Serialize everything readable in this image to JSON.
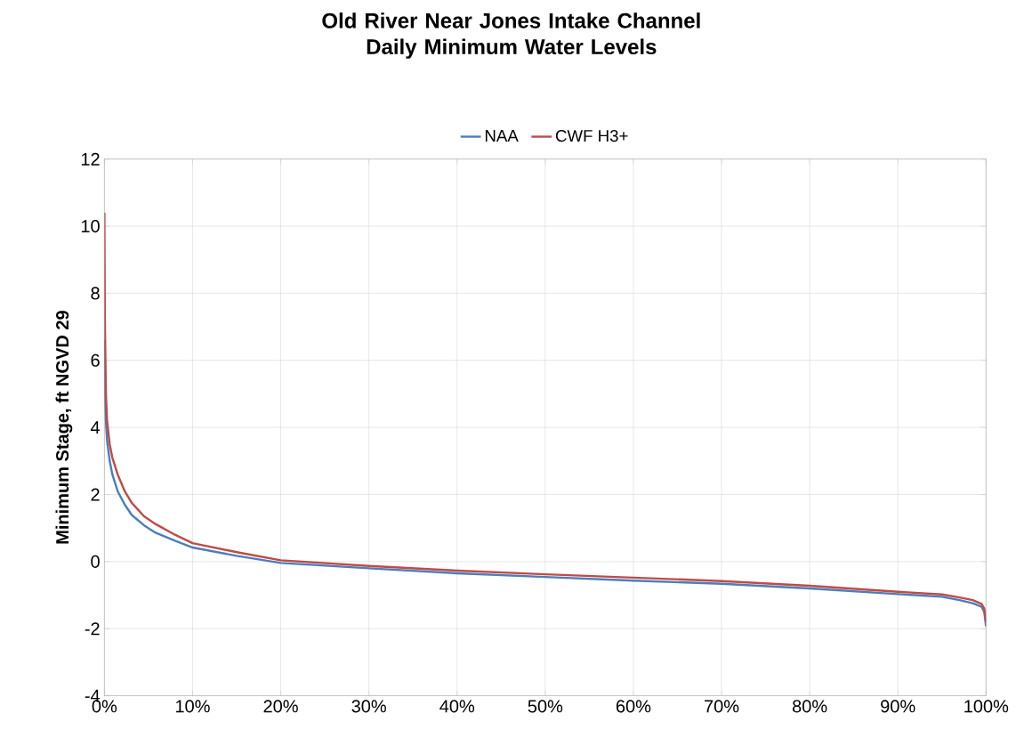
{
  "chart_data": {
    "type": "line",
    "title": "Old River Near Jones Intake Channel\nDaily Minimum Water Levels",
    "ylabel": "Minimum Stage, ft NGVD 29",
    "x": [
      0,
      0.05,
      0.17,
      0.3,
      0.6,
      0.9,
      1.5,
      2.3,
      3.1,
      4.5,
      5.8,
      8,
      10,
      15,
      20,
      30,
      40,
      50,
      60,
      70,
      80,
      90,
      95,
      97,
      98.5,
      99.5,
      99.8,
      100
    ],
    "series": [
      {
        "name": "NAA",
        "color": "#4a7ebb",
        "values": [
          6.6,
          5.0,
          4.2,
          3.6,
          3.0,
          2.6,
          2.1,
          1.7,
          1.39,
          1.08,
          0.86,
          0.62,
          0.42,
          0.17,
          -0.04,
          -0.2,
          -0.35,
          -0.46,
          -0.57,
          -0.66,
          -0.8,
          -0.97,
          -1.05,
          -1.15,
          -1.24,
          -1.35,
          -1.5,
          -1.93
        ]
      },
      {
        "name": "CWF H3+",
        "color": "#be4b48",
        "values": [
          10.4,
          7.2,
          5.0,
          4.2,
          3.5,
          3.1,
          2.6,
          2.1,
          1.75,
          1.35,
          1.12,
          0.8,
          0.55,
          0.28,
          0.04,
          -0.13,
          -0.27,
          -0.38,
          -0.48,
          -0.58,
          -0.72,
          -0.9,
          -0.98,
          -1.07,
          -1.15,
          -1.26,
          -1.4,
          -1.8
        ]
      }
    ],
    "xlim": [
      0,
      100
    ],
    "ylim": [
      -4,
      12
    ],
    "xticks": [
      {
        "value": 0,
        "label": "0%"
      },
      {
        "value": 10,
        "label": "10%"
      },
      {
        "value": 20,
        "label": "20%"
      },
      {
        "value": 30,
        "label": "30%"
      },
      {
        "value": 40,
        "label": "40%"
      },
      {
        "value": 50,
        "label": "50%"
      },
      {
        "value": 60,
        "label": "60%"
      },
      {
        "value": 70,
        "label": "70%"
      },
      {
        "value": 80,
        "label": "80%"
      },
      {
        "value": 90,
        "label": "90%"
      },
      {
        "value": 100,
        "label": "100%"
      }
    ],
    "yticks": [
      -4,
      -2,
      0,
      2,
      4,
      6,
      8,
      10,
      12
    ],
    "grid": true,
    "legend": "top",
    "marker": "none",
    "line_style": "solid"
  }
}
